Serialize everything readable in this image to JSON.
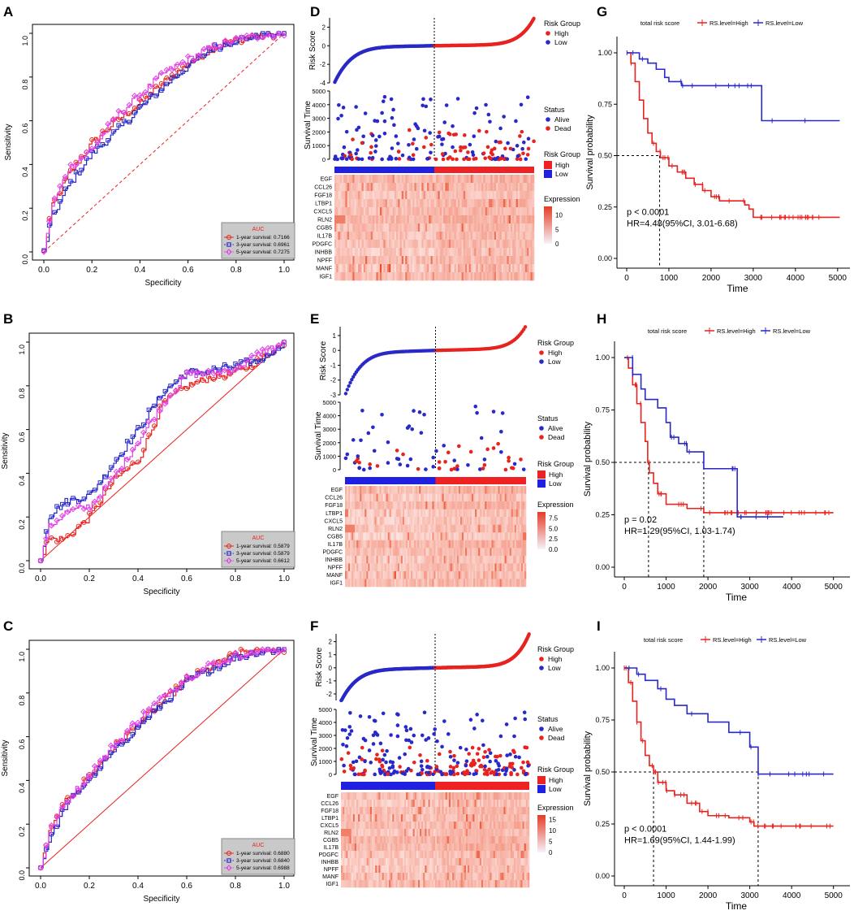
{
  "figure": {
    "panel_letters": [
      "A",
      "B",
      "C",
      "D",
      "E",
      "F",
      "G",
      "H",
      "I"
    ],
    "genes": [
      "EGF",
      "CCL26",
      "FGF18",
      "LTBP1",
      "CXCL5",
      "RLN2",
      "CGB5",
      "IL17B",
      "PDGFC",
      "INHBB",
      "NPFF",
      "MANF",
      "IGF1"
    ]
  },
  "chart_data": [
    {
      "id": "A",
      "type": "line",
      "title": "",
      "xlabel": "Specificity",
      "ylabel": "Sensitivity",
      "xlim": [
        0,
        1
      ],
      "ylim": [
        0,
        1
      ],
      "xticks": [
        "0.0",
        "0.2",
        "0.4",
        "0.6",
        "0.8",
        "1.0"
      ],
      "yticks": [
        "0.0",
        "0.2",
        "0.4",
        "0.6",
        "0.8",
        "1.0"
      ],
      "legend": {
        "title": "AUC",
        "position": "bottom-right",
        "entries": [
          "1-year survival: 0.7166",
          "3-year survival: 0.6961",
          "5-year survival: 0.7275"
        ]
      },
      "series": [
        {
          "name": "1-year survival: 0.7166",
          "color": "#e8231f",
          "x": [
            0,
            0.03,
            0.1,
            0.2,
            0.3,
            0.4,
            0.5,
            0.6,
            0.7,
            0.8,
            0.9,
            1
          ],
          "y": [
            0,
            0.2,
            0.35,
            0.5,
            0.6,
            0.68,
            0.78,
            0.86,
            0.93,
            0.97,
            0.99,
            1
          ]
        },
        {
          "name": "3-year survival: 0.6961",
          "color": "#2929c9",
          "x": [
            0,
            0.03,
            0.1,
            0.2,
            0.3,
            0.4,
            0.5,
            0.6,
            0.7,
            0.8,
            0.9,
            1
          ],
          "y": [
            0,
            0.15,
            0.3,
            0.45,
            0.55,
            0.66,
            0.76,
            0.85,
            0.93,
            0.97,
            0.99,
            1
          ]
        },
        {
          "name": "5-year survival: 0.7275",
          "color": "#e23fe6",
          "x": [
            0,
            0.03,
            0.1,
            0.2,
            0.3,
            0.4,
            0.5,
            0.6,
            0.7,
            0.8,
            0.9,
            1
          ],
          "y": [
            0,
            0.2,
            0.38,
            0.47,
            0.62,
            0.72,
            0.82,
            0.88,
            0.94,
            0.97,
            0.99,
            1
          ]
        }
      ]
    },
    {
      "id": "B",
      "type": "line",
      "title": "",
      "xlabel": "Specificity",
      "ylabel": "Sensitivity",
      "xlim": [
        0,
        1
      ],
      "ylim": [
        0,
        1
      ],
      "xticks": [
        "0.0",
        "0.2",
        "0.4",
        "0.6",
        "0.8",
        "1.0"
      ],
      "yticks": [
        "0.0",
        "0.2",
        "0.4",
        "0.6",
        "0.8",
        "1.0"
      ],
      "legend": {
        "title": "AUC",
        "position": "bottom-right",
        "entries": [
          "1-year survival: 0.5879",
          "3-year survival: 0.5879",
          "5-year survival: 0.6612"
        ]
      },
      "series": [
        {
          "name": "1-year survival: 0.5879",
          "color": "#e8231f",
          "x": [
            0,
            0.03,
            0.1,
            0.2,
            0.3,
            0.4,
            0.5,
            0.6,
            0.7,
            0.8,
            0.9,
            1
          ],
          "y": [
            0,
            0.1,
            0.1,
            0.2,
            0.37,
            0.46,
            0.72,
            0.8,
            0.84,
            0.86,
            0.92,
            1
          ]
        },
        {
          "name": "3-year survival: 0.5879",
          "color": "#2929c9",
          "x": [
            0,
            0.03,
            0.1,
            0.2,
            0.3,
            0.4,
            0.5,
            0.6,
            0.7,
            0.8,
            0.9,
            1
          ],
          "y": [
            0,
            0.2,
            0.27,
            0.3,
            0.45,
            0.6,
            0.77,
            0.86,
            0.87,
            0.89,
            0.92,
            1
          ]
        },
        {
          "name": "5-year survival: 0.6612",
          "color": "#e23fe6",
          "x": [
            0,
            0.03,
            0.1,
            0.2,
            0.3,
            0.4,
            0.5,
            0.6,
            0.7,
            0.8,
            0.9,
            1
          ],
          "y": [
            0,
            0.15,
            0.22,
            0.25,
            0.38,
            0.55,
            0.72,
            0.85,
            0.86,
            0.88,
            0.95,
            1
          ]
        }
      ]
    },
    {
      "id": "C",
      "type": "line",
      "title": "",
      "xlabel": "Specificity",
      "ylabel": "Sensitivity",
      "xlim": [
        0,
        1
      ],
      "ylim": [
        0,
        1
      ],
      "xticks": [
        "0.0",
        "0.2",
        "0.4",
        "0.6",
        "0.8",
        "1.0"
      ],
      "yticks": [
        "0.0",
        "0.2",
        "0.4",
        "0.6",
        "0.8",
        "1.0"
      ],
      "legend": {
        "title": "AUC",
        "position": "bottom-right",
        "entries": [
          "1-year survival: 0.6880",
          "3-year survival: 0.6840",
          "5-year survival: 0.6988"
        ]
      },
      "series": [
        {
          "name": "1-year survival: 0.6880",
          "color": "#e8231f",
          "x": [
            0,
            0.03,
            0.1,
            0.2,
            0.3,
            0.4,
            0.5,
            0.6,
            0.7,
            0.8,
            0.9,
            1
          ],
          "y": [
            0,
            0.15,
            0.3,
            0.42,
            0.55,
            0.66,
            0.76,
            0.86,
            0.92,
            0.98,
            1,
            1
          ]
        },
        {
          "name": "3-year survival: 0.6840",
          "color": "#2929c9",
          "x": [
            0,
            0.03,
            0.1,
            0.2,
            0.3,
            0.4,
            0.5,
            0.6,
            0.7,
            0.8,
            0.9,
            1
          ],
          "y": [
            0,
            0.12,
            0.28,
            0.41,
            0.53,
            0.65,
            0.75,
            0.85,
            0.91,
            0.96,
            0.99,
            1
          ]
        },
        {
          "name": "5-year survival: 0.6988",
          "color": "#e23fe6",
          "x": [
            0,
            0.03,
            0.1,
            0.2,
            0.3,
            0.4,
            0.5,
            0.6,
            0.7,
            0.8,
            0.9,
            1
          ],
          "y": [
            0,
            0.15,
            0.3,
            0.43,
            0.56,
            0.68,
            0.78,
            0.87,
            0.93,
            0.97,
            0.99,
            1
          ]
        }
      ]
    },
    {
      "id": "D",
      "type": "scatter",
      "title": "",
      "risk_score": {
        "ylabel": "Risk Score",
        "ylim": [
          -4,
          3
        ],
        "yticks": [
          "2",
          "0",
          "-2",
          "-4"
        ],
        "legend_title": "Risk Group",
        "legend_entries": [
          "High",
          "Low"
        ],
        "n": 300
      },
      "survival": {
        "ylabel": "Survival Time",
        "ylim": [
          0,
          5000
        ],
        "yticks": [
          "5000",
          "4000",
          "3000",
          "2000",
          "1000",
          "0"
        ],
        "legend_title": "Status",
        "legend_entries": [
          "Alive",
          "Dead"
        ]
      },
      "heatmap": {
        "group_title": "Risk Group",
        "group_entries": [
          "High",
          "Low"
        ],
        "expression_title": "Expression",
        "expression_ticks": [
          "10",
          "5",
          "0"
        ],
        "max": 13
      }
    },
    {
      "id": "E",
      "type": "scatter",
      "title": "",
      "risk_score": {
        "ylabel": "Risk Score",
        "ylim": [
          -3,
          1.6
        ],
        "yticks": [
          "1",
          "0",
          "-1",
          "-2",
          "-3"
        ],
        "legend_title": "Risk Group",
        "legend_entries": [
          "High",
          "Low"
        ],
        "n": 120
      },
      "survival": {
        "ylabel": "Survival Time",
        "ylim": [
          0,
          5000
        ],
        "yticks": [
          "5000",
          "4000",
          "3000",
          "2000",
          "1000",
          "0"
        ],
        "legend_title": "Status",
        "legend_entries": [
          "Alive",
          "Dead"
        ]
      },
      "heatmap": {
        "group_title": "Risk Group",
        "group_entries": [
          "High",
          "Low"
        ],
        "expression_title": "Expression",
        "expression_ticks": [
          "7.5",
          "5.0",
          "2.5",
          "0.0"
        ],
        "max": 9
      }
    },
    {
      "id": "F",
      "type": "scatter",
      "title": "",
      "risk_score": {
        "ylabel": "Risk Score",
        "ylim": [
          -2.5,
          2.6
        ],
        "yticks": [
          "2",
          "1",
          "0",
          "-1",
          "-2"
        ],
        "legend_title": "Risk Group",
        "legend_entries": [
          "High",
          "Low"
        ],
        "n": 420
      },
      "survival": {
        "ylabel": "Survival Time",
        "ylim": [
          0,
          5000
        ],
        "yticks": [
          "5000",
          "4000",
          "3000",
          "2000",
          "1000",
          "0"
        ],
        "legend_title": "Status",
        "legend_entries": [
          "Alive",
          "Dead"
        ]
      },
      "heatmap": {
        "group_title": "Risk Group",
        "group_entries": [
          "High",
          "Low"
        ],
        "expression_title": "Expression",
        "expression_ticks": [
          "15",
          "10",
          "5",
          "0"
        ],
        "max": 17
      }
    },
    {
      "id": "G",
      "type": "line",
      "title": "total risk score",
      "xlabel": "Time",
      "ylabel": "Survival probability",
      "xlim": [
        0,
        5100
      ],
      "ylim": [
        0,
        1
      ],
      "xticks": [
        "0",
        "1000",
        "2000",
        "3000",
        "4000",
        "5000"
      ],
      "yticks": [
        "0.00",
        "0.25",
        "0.50",
        "0.75",
        "1.00"
      ],
      "legend_entries": [
        "RS.level=High",
        "RS.level=Low"
      ],
      "annotation": [
        "p < 0.0001",
        "HR=4.48(95%CI, 3.01-6.68)"
      ],
      "median_time": 780,
      "series": [
        {
          "name": "RS.level=High",
          "color": "#e8231f",
          "x": [
            0,
            100,
            200,
            300,
            400,
            500,
            600,
            700,
            800,
            1000,
            1200,
            1400,
            1600,
            1800,
            2000,
            2200,
            2400,
            2600,
            2800,
            2900,
            3000,
            5050
          ],
          "y": [
            1,
            0.95,
            0.86,
            0.77,
            0.68,
            0.61,
            0.56,
            0.52,
            0.49,
            0.45,
            0.42,
            0.39,
            0.36,
            0.33,
            0.3,
            0.28,
            0.28,
            0.28,
            0.26,
            0.24,
            0.2,
            0.2
          ]
        },
        {
          "name": "RS.level=Low",
          "color": "#2929c9",
          "x": [
            0,
            300,
            500,
            700,
            900,
            1000,
            1300,
            3000,
            3200,
            5050
          ],
          "y": [
            1,
            0.97,
            0.95,
            0.92,
            0.88,
            0.86,
            0.84,
            0.84,
            0.67,
            0.67
          ]
        }
      ]
    },
    {
      "id": "H",
      "type": "line",
      "title": "total risk score",
      "xlabel": "Time",
      "ylabel": "Survival probability",
      "xlim": [
        0,
        5200
      ],
      "ylim": [
        0,
        1
      ],
      "xticks": [
        "0",
        "1000",
        "2000",
        "3000",
        "4000",
        "5000"
      ],
      "yticks": [
        "0.00",
        "0.25",
        "0.50",
        "0.75",
        "1.00"
      ],
      "legend_entries": [
        "RS.level=High",
        "RS.level=Low"
      ],
      "annotation": [
        "p = 0.02",
        "HR=1.29(95%CI, 1.03-1.74)"
      ],
      "median_time": 580,
      "series": [
        {
          "name": "RS.level=High",
          "color": "#e8231f",
          "x": [
            0,
            100,
            200,
            300,
            400,
            500,
            560,
            600,
            700,
            800,
            1000,
            1500,
            1900,
            2000,
            5000
          ],
          "y": [
            1,
            0.95,
            0.87,
            0.78,
            0.69,
            0.6,
            0.5,
            0.45,
            0.4,
            0.35,
            0.3,
            0.28,
            0.26,
            0.26,
            0.26
          ]
        },
        {
          "name": "RS.level=Low",
          "color": "#2929c9",
          "x": [
            0,
            200,
            400,
            500,
            800,
            1000,
            1100,
            1300,
            1500,
            1900,
            2300,
            2700,
            3800
          ],
          "y": [
            1,
            0.92,
            0.85,
            0.8,
            0.76,
            0.69,
            0.62,
            0.59,
            0.55,
            0.47,
            0.47,
            0.24,
            0.24
          ]
        }
      ]
    },
    {
      "id": "I",
      "type": "line",
      "title": "total risk score",
      "xlabel": "Time",
      "ylabel": "Survival probability",
      "xlim": [
        0,
        5200
      ],
      "ylim": [
        0,
        1
      ],
      "xticks": [
        "0",
        "1000",
        "2000",
        "3000",
        "4000",
        "5000"
      ],
      "yticks": [
        "0.00",
        "0.25",
        "0.50",
        "0.75",
        "1.00"
      ],
      "legend_entries": [
        "RS.level=High",
        "RS.level=Low"
      ],
      "annotation": [
        "p < 0.0001",
        "HR=1.69(95%CI, 1.44-1.99)"
      ],
      "median_time": 700,
      "series": [
        {
          "name": "RS.level=High",
          "color": "#e8231f",
          "x": [
            0,
            100,
            200,
            300,
            400,
            500,
            600,
            700,
            800,
            1000,
            1200,
            1500,
            1800,
            2000,
            2500,
            3000,
            3100,
            5000
          ],
          "y": [
            1,
            0.93,
            0.84,
            0.74,
            0.65,
            0.58,
            0.53,
            0.5,
            0.45,
            0.41,
            0.39,
            0.35,
            0.31,
            0.29,
            0.28,
            0.26,
            0.24,
            0.24
          ]
        },
        {
          "name": "RS.level=Low",
          "color": "#2929c9",
          "x": [
            0,
            300,
            500,
            800,
            1000,
            1200,
            1500,
            2000,
            2500,
            3000,
            3200,
            5000
          ],
          "y": [
            1,
            0.97,
            0.94,
            0.9,
            0.85,
            0.82,
            0.78,
            0.74,
            0.69,
            0.62,
            0.49,
            0.49
          ]
        }
      ]
    }
  ]
}
